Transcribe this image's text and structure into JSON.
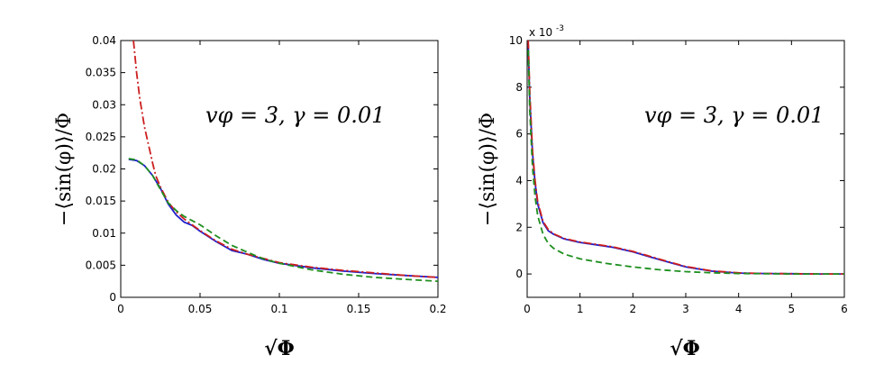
{
  "chart_data": [
    {
      "type": "line",
      "title": "",
      "xlabel": "√Φ",
      "ylabel": "−⟨sin(φ)⟩/Φ",
      "annotation": "vφ = 3, γ = 0.01",
      "xlim": [
        0,
        0.2
      ],
      "ylim": [
        0,
        0.04
      ],
      "xticks": [
        "0",
        "0.05",
        "0.1",
        "0.15",
        "0.2"
      ],
      "yticks": [
        "0",
        "0.005",
        "0.01",
        "0.015",
        "0.02",
        "0.025",
        "0.03",
        "0.035",
        "0.04"
      ],
      "series": [
        {
          "name": "blue-solid",
          "color": "#1f1fcc",
          "style": "solid",
          "x": [
            0.005,
            0.01,
            0.015,
            0.02,
            0.025,
            0.03,
            0.035,
            0.04,
            0.045,
            0.05,
            0.06,
            0.07,
            0.08,
            0.09,
            0.1,
            0.12,
            0.14,
            0.16,
            0.18,
            0.2
          ],
          "y": [
            0.0215,
            0.0213,
            0.0205,
            0.019,
            0.017,
            0.0145,
            0.0128,
            0.0117,
            0.0112,
            0.0103,
            0.0087,
            0.0073,
            0.0067,
            0.0059,
            0.0053,
            0.0046,
            0.0041,
            0.0037,
            0.0034,
            0.0031
          ]
        },
        {
          "name": "red-dashdot",
          "color": "#cc1f1f",
          "style": "dashdot",
          "x": [
            0.008,
            0.01,
            0.012,
            0.015,
            0.018,
            0.02,
            0.022,
            0.025,
            0.03,
            0.035,
            0.04,
            0.05,
            0.06,
            0.07,
            0.08,
            0.1,
            0.12,
            0.14,
            0.16,
            0.18,
            0.2
          ],
          "y": [
            0.04,
            0.035,
            0.031,
            0.0265,
            0.0232,
            0.021,
            0.019,
            0.0172,
            0.0148,
            0.0133,
            0.0122,
            0.0104,
            0.0088,
            0.0075,
            0.0067,
            0.0054,
            0.0047,
            0.0042,
            0.0038,
            0.0034,
            0.0031
          ]
        },
        {
          "name": "green-dashed",
          "color": "#1f8f1f",
          "style": "dashed",
          "x": [
            0.005,
            0.01,
            0.015,
            0.02,
            0.025,
            0.03,
            0.035,
            0.04,
            0.05,
            0.06,
            0.07,
            0.08,
            0.09,
            0.1,
            0.12,
            0.14,
            0.16,
            0.18,
            0.2
          ],
          "y": [
            0.0216,
            0.0214,
            0.0205,
            0.019,
            0.0168,
            0.0147,
            0.0135,
            0.0126,
            0.0113,
            0.0096,
            0.0081,
            0.007,
            0.006,
            0.0053,
            0.0043,
            0.0036,
            0.0031,
            0.0028,
            0.0025
          ]
        }
      ]
    },
    {
      "type": "line",
      "title": "",
      "xlabel": "√Φ",
      "ylabel": "−⟨sin(φ)⟩/Φ",
      "annotation": "vφ = 3, γ = 0.01",
      "exponent_label": "x 10",
      "exponent_power": "-3",
      "xlim": [
        0,
        6
      ],
      "ylim": [
        -1,
        10
      ],
      "xticks": [
        "0",
        "1",
        "2",
        "3",
        "4",
        "5",
        "6"
      ],
      "yticks": [
        "0",
        "2",
        "4",
        "6",
        "8",
        "10"
      ],
      "series": [
        {
          "name": "blue-solid",
          "color": "#1f1fcc",
          "style": "solid",
          "x": [
            0.02,
            0.05,
            0.1,
            0.15,
            0.2,
            0.3,
            0.4,
            0.5,
            0.7,
            1.0,
            1.3,
            1.6,
            2.0,
            2.3,
            2.6,
            3.0,
            3.5,
            4.0,
            4.5,
            5.0,
            5.5,
            6.0
          ],
          "y": [
            9.8,
            7.5,
            5.2,
            3.9,
            3.0,
            2.2,
            1.85,
            1.7,
            1.5,
            1.35,
            1.25,
            1.15,
            0.95,
            0.75,
            0.55,
            0.3,
            0.12,
            0.04,
            0.02,
            0.01,
            0.0,
            0.0
          ]
        },
        {
          "name": "red-dashdot",
          "color": "#cc1f1f",
          "style": "dashdot",
          "x": [
            0.02,
            0.05,
            0.1,
            0.15,
            0.2,
            0.3,
            0.4,
            0.5,
            0.7,
            1.0,
            1.3,
            1.6,
            2.0,
            2.3,
            2.6,
            3.0,
            3.5,
            4.0,
            4.5,
            5.0,
            5.5,
            6.0
          ],
          "y": [
            10.0,
            7.8,
            5.3,
            4.0,
            3.1,
            2.25,
            1.9,
            1.72,
            1.52,
            1.37,
            1.27,
            1.17,
            0.97,
            0.77,
            0.57,
            0.32,
            0.13,
            0.05,
            0.02,
            0.01,
            0.0,
            0.0
          ]
        },
        {
          "name": "green-dashed",
          "color": "#1f8f1f",
          "style": "dashed",
          "x": [
            0.02,
            0.05,
            0.1,
            0.15,
            0.2,
            0.3,
            0.4,
            0.5,
            0.7,
            1.0,
            1.5,
            2.0,
            2.5,
            3.0,
            3.5,
            4.0,
            4.5,
            5.0,
            6.0
          ],
          "y": [
            9.6,
            7.0,
            4.6,
            3.3,
            2.5,
            1.7,
            1.3,
            1.1,
            0.85,
            0.65,
            0.45,
            0.3,
            0.18,
            0.1,
            0.05,
            0.02,
            0.01,
            0.0,
            0.0
          ]
        }
      ]
    }
  ]
}
